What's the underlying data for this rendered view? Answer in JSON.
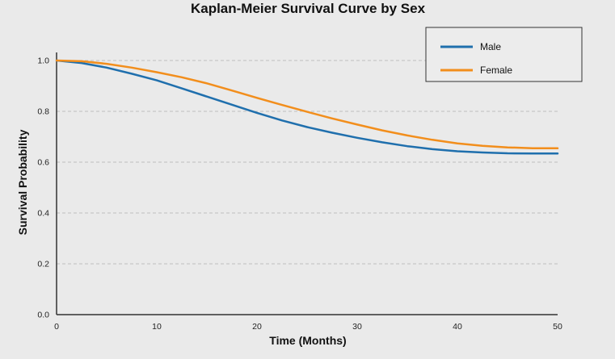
{
  "chart_data": {
    "type": "line",
    "title": "Kaplan-Meier Survival Curve by Sex",
    "xlabel": "Time (Months)",
    "ylabel": "Survival Probability",
    "xlim": [
      0,
      50
    ],
    "ylim": [
      0.0,
      1.0
    ],
    "xticks": [
      "0",
      "10",
      "20",
      "30",
      "40",
      "50"
    ],
    "yticks": [
      "0.0",
      "0.2",
      "0.4",
      "0.6",
      "0.8",
      "1.0"
    ],
    "grid": "horizontal dashed",
    "legend_position": "top-right",
    "series": [
      {
        "name": "Male",
        "color": "#1f6fad",
        "x": [
          0,
          2.5,
          5,
          7.5,
          10,
          12.5,
          15,
          17.5,
          20,
          22.5,
          25,
          27.5,
          30,
          32.5,
          35,
          37.5,
          40,
          42.5,
          45,
          47.5,
          50
        ],
        "y": [
          1.0,
          0.99,
          0.972,
          0.948,
          0.922,
          0.89,
          0.858,
          0.826,
          0.794,
          0.764,
          0.738,
          0.716,
          0.696,
          0.678,
          0.663,
          0.651,
          0.643,
          0.638,
          0.635,
          0.634,
          0.634
        ]
      },
      {
        "name": "Female",
        "color": "#f28e1c",
        "x": [
          0,
          2.5,
          5,
          7.5,
          10,
          12.5,
          15,
          17.5,
          20,
          22.5,
          25,
          27.5,
          30,
          32.5,
          35,
          37.5,
          40,
          42.5,
          45,
          47.5,
          50
        ],
        "y": [
          1.0,
          0.997,
          0.987,
          0.972,
          0.954,
          0.934,
          0.91,
          0.882,
          0.853,
          0.825,
          0.798,
          0.772,
          0.748,
          0.725,
          0.705,
          0.688,
          0.674,
          0.664,
          0.658,
          0.655,
          0.655
        ]
      }
    ]
  }
}
